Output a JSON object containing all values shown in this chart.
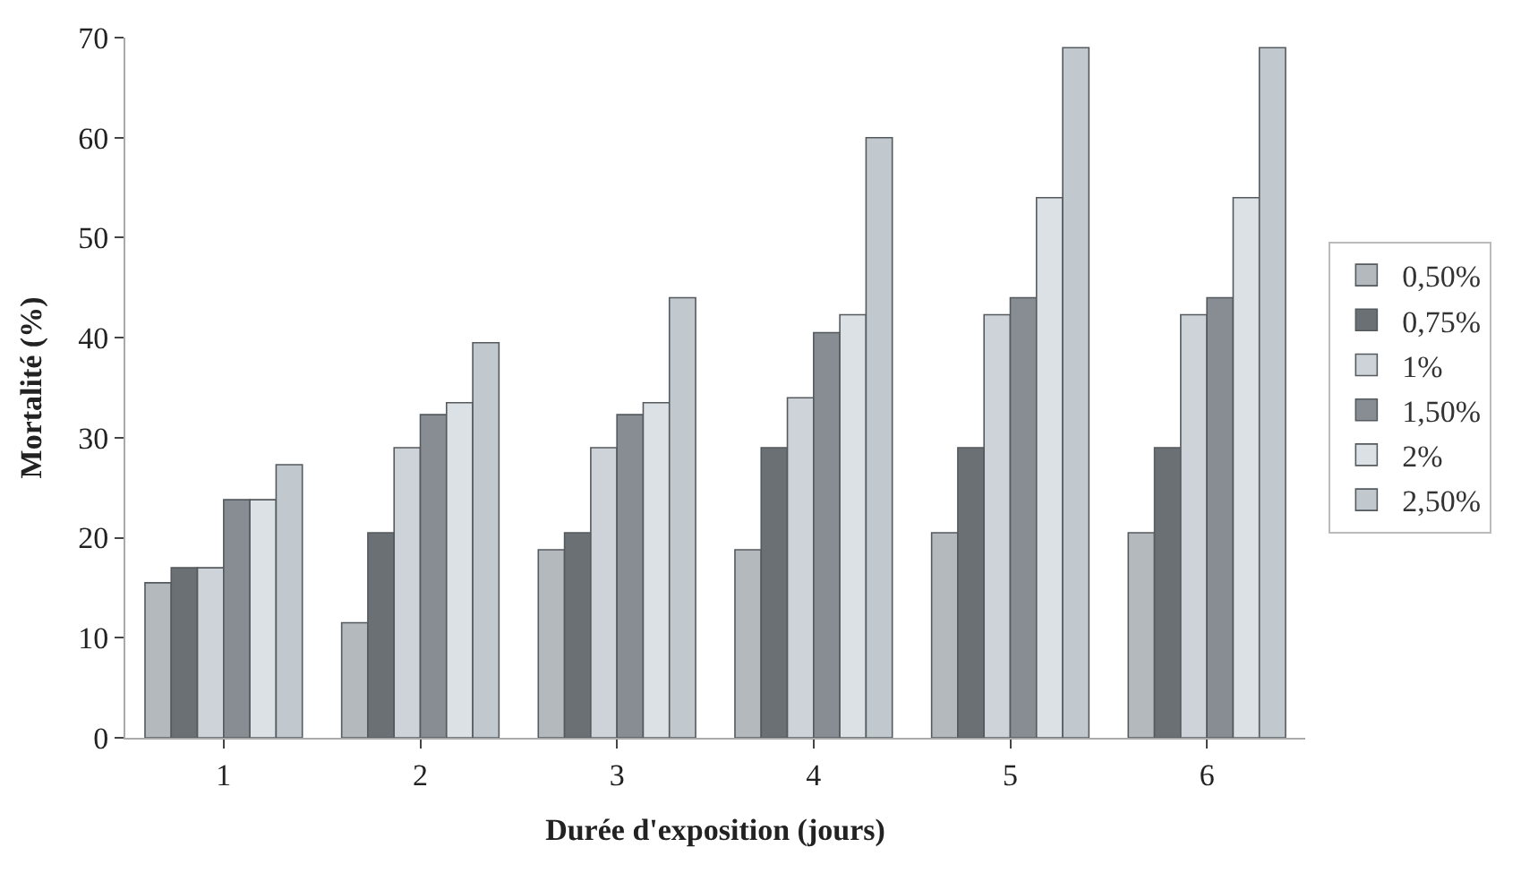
{
  "chart_data": {
    "type": "bar",
    "xlabel": "Durée d'exposition (jours)",
    "ylabel": "Mortalité (%)",
    "categories": [
      "1",
      "2",
      "3",
      "4",
      "5",
      "6"
    ],
    "series": [
      {
        "name": "0,50%",
        "color": "#b4b9bd",
        "values": [
          15.5,
          11.5,
          18.8,
          18.8,
          20.5,
          20.5
        ]
      },
      {
        "name": "0,75%",
        "color": "#6b7074",
        "values": [
          17,
          20.5,
          20.5,
          29,
          29,
          29
        ]
      },
      {
        "name": "1%",
        "color": "#cdd3d8",
        "values": [
          17,
          29,
          29,
          34,
          42.3,
          42.3
        ]
      },
      {
        "name": "1,50%",
        "color": "#878d92",
        "values": [
          23.8,
          32.3,
          32.3,
          40.5,
          44,
          44
        ]
      },
      {
        "name": "2%",
        "color": "#dce1e5",
        "values": [
          23.8,
          33.5,
          33.5,
          42.3,
          54,
          54
        ]
      },
      {
        "name": "2,50%",
        "color": "#c2c9ce",
        "values": [
          27.3,
          39.5,
          44,
          60,
          69,
          69
        ]
      }
    ],
    "ylim": [
      0,
      70
    ],
    "yticks": [
      0,
      10,
      20,
      30,
      40,
      50,
      60,
      70
    ],
    "legend": "right"
  }
}
